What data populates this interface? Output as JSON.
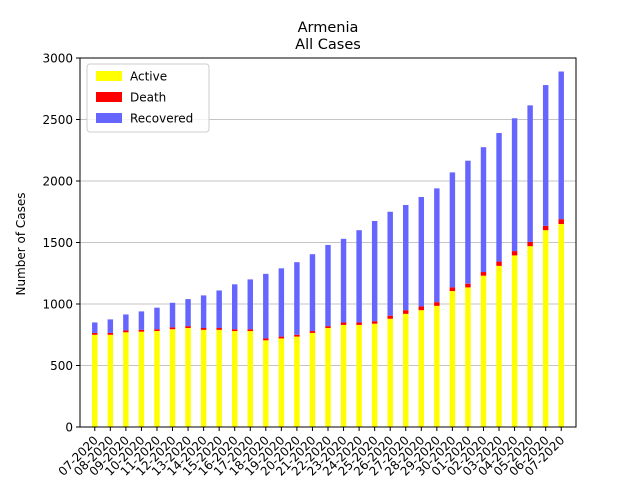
{
  "chart_data": {
    "type": "bar",
    "stacked": true,
    "title": "Armenia",
    "subtitle": "All Cases",
    "xlabel": "",
    "ylabel": "Number of Cases",
    "ylim": [
      0,
      3000
    ],
    "yticks": [
      0,
      500,
      1000,
      1500,
      2000,
      2500,
      3000
    ],
    "grid": "horizontal",
    "legend_position": "top-left",
    "categories": [
      "07-2020",
      "08-2020",
      "09-2020",
      "10-2020",
      "11-2020",
      "12-2020",
      "13-2020",
      "14-2020",
      "15-2020",
      "16-2020",
      "17-2020",
      "18-2020",
      "19-2020",
      "20-2020",
      "21-2020",
      "22-2020",
      "23-2020",
      "24-2020",
      "25-2020",
      "26-2020",
      "27-2020",
      "28-2020",
      "29-2020",
      "30-2020",
      "01-2020",
      "02-2020",
      "03-2020",
      "04-2020",
      "05-2020",
      "06-2020",
      "07-2020"
    ],
    "series": [
      {
        "name": "Active",
        "color": "#ffff00",
        "values": [
          750,
          750,
          770,
          775,
          780,
          795,
          805,
          790,
          790,
          780,
          780,
          705,
          720,
          735,
          765,
          805,
          830,
          830,
          840,
          880,
          920,
          950,
          985,
          1105,
          1135,
          1230,
          1310,
          1395,
          1470,
          1600,
          1650
        ]
      },
      {
        "name": "Death",
        "color": "#ff0000",
        "values": [
          15,
          15,
          15,
          15,
          15,
          15,
          15,
          15,
          15,
          15,
          15,
          15,
          15,
          15,
          15,
          15,
          20,
          20,
          20,
          25,
          30,
          30,
          30,
          30,
          30,
          30,
          35,
          35,
          35,
          35,
          40
        ]
      },
      {
        "name": "Recovered",
        "color": "#6666ff",
        "values": [
          85,
          110,
          130,
          150,
          175,
          200,
          220,
          265,
          305,
          365,
          405,
          525,
          555,
          590,
          625,
          660,
          680,
          750,
          815,
          845,
          855,
          890,
          925,
          935,
          1000,
          1015,
          1045,
          1080,
          1110,
          1145,
          1200
        ]
      }
    ]
  }
}
